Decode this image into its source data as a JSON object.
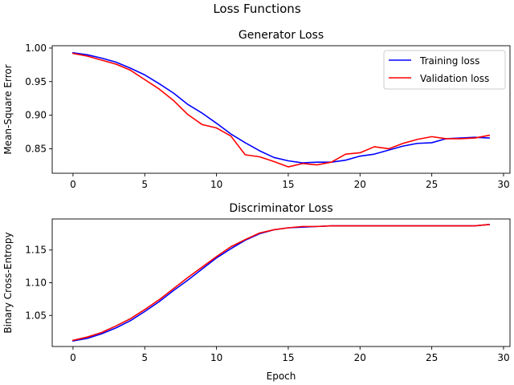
{
  "figure": {
    "suptitle": "Loss Functions"
  },
  "chart_data": [
    {
      "type": "line",
      "title": "Generator Loss",
      "xlabel": "",
      "ylabel": "Mean-Square Error",
      "xlim": [
        -1.45,
        30.45
      ],
      "ylim": [
        0.8135,
        1.0035
      ],
      "xticks": [
        0,
        5,
        10,
        15,
        20,
        25,
        30
      ],
      "xtick_labels": [
        "0",
        "5",
        "10",
        "15",
        "20",
        "25",
        "30"
      ],
      "yticks": [
        0.85,
        0.9,
        0.95,
        1.0
      ],
      "ytick_labels": [
        "0.85",
        "0.90",
        "0.95",
        "1.00"
      ],
      "grid": false,
      "legend": "top-right",
      "x": [
        0,
        1,
        2,
        3,
        4,
        5,
        6,
        7,
        8,
        9,
        10,
        11,
        12,
        13,
        14,
        15,
        16,
        17,
        18,
        19,
        20,
        21,
        22,
        23,
        24,
        25,
        26,
        27,
        28,
        29
      ],
      "series": [
        {
          "name": "Training loss",
          "color": "#0000ff",
          "values": [
            0.993,
            0.99,
            0.985,
            0.979,
            0.97,
            0.96,
            0.947,
            0.933,
            0.916,
            0.903,
            0.888,
            0.872,
            0.859,
            0.847,
            0.837,
            0.832,
            0.829,
            0.83,
            0.83,
            0.833,
            0.839,
            0.842,
            0.848,
            0.854,
            0.858,
            0.859,
            0.865,
            0.866,
            0.867,
            0.866
          ]
        },
        {
          "name": "Validation loss",
          "color": "#ff0000",
          "values": [
            0.992,
            0.988,
            0.982,
            0.976,
            0.967,
            0.953,
            0.939,
            0.922,
            0.901,
            0.886,
            0.881,
            0.869,
            0.841,
            0.838,
            0.831,
            0.823,
            0.828,
            0.826,
            0.83,
            0.842,
            0.844,
            0.853,
            0.85,
            0.858,
            0.864,
            0.868,
            0.865,
            0.865,
            0.866,
            0.87
          ]
        }
      ]
    },
    {
      "type": "line",
      "title": "Discriminator Loss",
      "xlabel": "Epoch",
      "ylabel": "Binary Cross-Entropy",
      "xlim": [
        -1.45,
        30.45
      ],
      "ylim": [
        1.0025,
        1.1975
      ],
      "xticks": [
        0,
        5,
        10,
        15,
        20,
        25,
        30
      ],
      "xtick_labels": [
        "0",
        "5",
        "10",
        "15",
        "20",
        "25",
        "30"
      ],
      "yticks": [
        1.05,
        1.1,
        1.15
      ],
      "ytick_labels": [
        "1.05",
        "1.10",
        "1.15"
      ],
      "grid": false,
      "x": [
        0,
        1,
        2,
        3,
        4,
        5,
        6,
        7,
        8,
        9,
        10,
        11,
        12,
        13,
        14,
        15,
        16,
        17,
        18,
        19,
        20,
        21,
        22,
        23,
        24,
        25,
        26,
        27,
        28,
        29
      ],
      "series": [
        {
          "name": "Training loss",
          "color": "#0000ff",
          "values": [
            1.011,
            1.015,
            1.022,
            1.031,
            1.042,
            1.056,
            1.071,
            1.088,
            1.104,
            1.121,
            1.138,
            1.152,
            1.165,
            1.175,
            1.181,
            1.184,
            1.185,
            1.186,
            1.187,
            1.187,
            1.187,
            1.187,
            1.187,
            1.187,
            1.187,
            1.187,
            1.187,
            1.187,
            1.187,
            1.189
          ]
        },
        {
          "name": "Validation loss",
          "color": "#ff0000",
          "values": [
            1.012,
            1.017,
            1.024,
            1.034,
            1.045,
            1.059,
            1.074,
            1.091,
            1.108,
            1.124,
            1.14,
            1.155,
            1.166,
            1.176,
            1.181,
            1.184,
            1.186,
            1.186,
            1.187,
            1.187,
            1.187,
            1.187,
            1.187,
            1.187,
            1.187,
            1.187,
            1.187,
            1.187,
            1.187,
            1.189
          ]
        }
      ]
    }
  ]
}
